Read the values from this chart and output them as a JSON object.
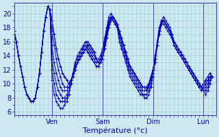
{
  "xlabel": "Température (°c)",
  "background_color": "#cce8f0",
  "grid_color": "#aaccdd",
  "line_color": "#0000bb",
  "xlim": [
    0,
    96
  ],
  "ylim": [
    5.5,
    21.5
  ],
  "yticks": [
    6,
    8,
    10,
    12,
    14,
    16,
    18,
    20
  ],
  "xtick_positions": [
    18,
    42,
    66,
    90
  ],
  "xtick_labels": [
    "Ven",
    "Sam",
    "Dim",
    "Lun"
  ],
  "series": [
    [
      17.5,
      16.0,
      14.0,
      12.5,
      11.0,
      9.5,
      8.5,
      8.0,
      7.5,
      7.5,
      8.0,
      9.5,
      11.5,
      14.5,
      17.5,
      19.5,
      21.0,
      20.5,
      19.0,
      17.0,
      15.0,
      13.5,
      12.5,
      11.5,
      11.0,
      10.5,
      10.0,
      10.5,
      11.0,
      12.0,
      13.0,
      13.5,
      14.0,
      14.5,
      15.0,
      15.5,
      15.5,
      15.0,
      14.5,
      13.5,
      13.0,
      13.0,
      13.5,
      15.0,
      16.5,
      18.0,
      19.0,
      19.5,
      19.0,
      18.5,
      17.5,
      16.5,
      15.5,
      14.5,
      13.5,
      12.5,
      12.0,
      11.5,
      11.0,
      10.5,
      10.0,
      9.5,
      9.5,
      9.5,
      10.0,
      11.0,
      12.0,
      13.5,
      15.5,
      17.5,
      18.5,
      19.0,
      18.5,
      18.0,
      17.5,
      16.5,
      15.5,
      15.0,
      14.5,
      14.0,
      13.5,
      13.0,
      12.5,
      12.0,
      11.5,
      11.0,
      10.5,
      10.0,
      9.5,
      9.5,
      10.0,
      10.5,
      11.0,
      11.5,
      11.0
    ],
    [
      17.5,
      16.0,
      14.0,
      12.5,
      11.0,
      9.5,
      8.5,
      8.0,
      7.5,
      7.5,
      8.0,
      9.5,
      11.5,
      14.5,
      17.5,
      19.5,
      21.0,
      20.5,
      19.0,
      17.0,
      15.0,
      13.5,
      12.5,
      11.5,
      11.0,
      10.5,
      10.0,
      10.5,
      11.0,
      12.0,
      13.0,
      13.5,
      14.0,
      14.5,
      15.0,
      15.5,
      15.5,
      15.0,
      14.5,
      13.5,
      13.0,
      13.0,
      13.5,
      15.0,
      16.5,
      18.0,
      19.0,
      19.5,
      19.0,
      18.5,
      17.5,
      16.5,
      15.5,
      14.5,
      13.5,
      12.5,
      12.0,
      11.5,
      11.0,
      10.5,
      10.0,
      9.5,
      9.5,
      9.5,
      10.0,
      11.0,
      12.0,
      13.5,
      15.5,
      17.5,
      18.5,
      19.0,
      18.5,
      18.0,
      17.5,
      16.5,
      15.5,
      15.0,
      14.5,
      14.0,
      13.5,
      13.0,
      12.5,
      12.0,
      11.5,
      11.0,
      10.5,
      10.0,
      9.5,
      9.5,
      10.0,
      10.5,
      11.0,
      11.5,
      11.0
    ],
    [
      17.5,
      16.0,
      14.0,
      12.5,
      11.0,
      9.5,
      8.5,
      8.0,
      7.5,
      7.5,
      8.0,
      9.5,
      11.5,
      14.5,
      17.5,
      19.5,
      21.0,
      20.5,
      17.5,
      15.5,
      13.5,
      12.0,
      11.0,
      10.0,
      9.5,
      9.5,
      10.0,
      10.5,
      11.5,
      13.0,
      14.0,
      14.5,
      15.0,
      15.5,
      16.0,
      16.0,
      15.5,
      15.0,
      14.5,
      13.5,
      13.0,
      13.5,
      14.0,
      15.5,
      17.0,
      18.5,
      19.5,
      19.5,
      19.0,
      18.5,
      17.5,
      16.5,
      15.5,
      14.5,
      13.5,
      12.5,
      12.0,
      11.5,
      11.0,
      10.5,
      10.0,
      9.5,
      9.5,
      9.5,
      10.0,
      11.0,
      12.0,
      13.5,
      15.5,
      17.0,
      18.5,
      18.5,
      18.0,
      17.5,
      17.0,
      16.5,
      15.5,
      15.0,
      14.5,
      14.0,
      13.5,
      13.0,
      12.5,
      12.0,
      11.5,
      11.0,
      10.5,
      10.0,
      9.5,
      9.0,
      9.5,
      10.0,
      10.5,
      11.0,
      11.0
    ],
    [
      17.5,
      16.0,
      14.0,
      12.5,
      11.0,
      9.5,
      8.5,
      8.0,
      7.5,
      7.5,
      8.0,
      9.5,
      11.5,
      14.5,
      17.5,
      19.5,
      21.0,
      20.5,
      15.5,
      13.0,
      11.5,
      10.5,
      9.5,
      9.0,
      9.0,
      9.0,
      9.5,
      10.5,
      11.5,
      13.0,
      13.5,
      14.0,
      14.5,
      15.5,
      16.0,
      15.5,
      15.0,
      14.5,
      14.0,
      13.5,
      13.5,
      14.0,
      15.0,
      16.5,
      18.0,
      19.5,
      20.0,
      19.5,
      19.0,
      18.5,
      17.5,
      16.5,
      15.5,
      14.5,
      13.5,
      12.5,
      12.0,
      11.5,
      11.0,
      10.5,
      10.0,
      9.5,
      9.5,
      9.0,
      10.0,
      11.0,
      12.0,
      14.0,
      15.5,
      17.5,
      18.5,
      19.0,
      18.5,
      18.0,
      17.5,
      17.0,
      16.0,
      15.5,
      15.0,
      14.5,
      14.0,
      13.5,
      13.0,
      12.5,
      12.0,
      11.5,
      11.0,
      10.5,
      10.0,
      9.5,
      9.5,
      10.0,
      10.5,
      11.0,
      11.0
    ],
    [
      17.5,
      16.0,
      14.0,
      12.5,
      11.0,
      9.5,
      8.5,
      8.0,
      7.5,
      7.5,
      8.0,
      9.5,
      11.5,
      14.5,
      17.5,
      19.5,
      21.0,
      20.5,
      13.5,
      11.5,
      10.0,
      9.0,
      8.5,
      8.0,
      8.0,
      8.5,
      9.0,
      10.0,
      11.5,
      13.0,
      13.5,
      14.0,
      14.5,
      15.0,
      15.5,
      15.0,
      14.5,
      14.0,
      13.5,
      13.0,
      13.0,
      13.5,
      14.5,
      16.0,
      17.5,
      19.0,
      19.5,
      19.5,
      19.0,
      18.0,
      17.0,
      16.0,
      15.0,
      14.0,
      13.0,
      12.0,
      11.5,
      11.0,
      10.5,
      10.0,
      9.5,
      9.0,
      9.0,
      9.0,
      9.5,
      10.5,
      12.0,
      14.0,
      16.0,
      18.0,
      19.0,
      19.5,
      19.0,
      18.5,
      18.0,
      17.0,
      16.0,
      15.5,
      15.0,
      14.5,
      14.0,
      13.5,
      13.0,
      12.5,
      12.0,
      11.5,
      11.0,
      10.5,
      10.0,
      9.5,
      9.0,
      9.5,
      10.0,
      11.0,
      11.0
    ],
    [
      17.5,
      16.0,
      14.0,
      12.5,
      11.0,
      9.5,
      8.5,
      8.0,
      7.5,
      7.5,
      8.0,
      9.5,
      11.5,
      14.5,
      17.5,
      19.5,
      21.0,
      20.5,
      12.0,
      10.0,
      8.5,
      8.0,
      7.5,
      7.5,
      7.5,
      8.0,
      8.5,
      10.0,
      11.5,
      12.5,
      13.0,
      13.5,
      14.0,
      14.5,
      15.0,
      14.5,
      14.0,
      13.5,
      13.0,
      12.5,
      12.5,
      13.0,
      14.5,
      16.0,
      17.5,
      19.0,
      19.5,
      19.0,
      18.5,
      18.0,
      16.5,
      15.5,
      14.5,
      13.5,
      12.5,
      11.5,
      11.0,
      10.5,
      10.0,
      9.5,
      9.0,
      8.5,
      8.5,
      8.5,
      9.0,
      10.0,
      11.5,
      13.5,
      16.0,
      18.0,
      19.0,
      19.0,
      18.5,
      18.0,
      17.5,
      17.0,
      16.0,
      15.5,
      15.0,
      14.5,
      14.0,
      13.5,
      13.0,
      12.5,
      12.0,
      11.5,
      11.0,
      10.5,
      10.0,
      9.5,
      9.0,
      9.0,
      9.5,
      10.5,
      11.0
    ],
    [
      17.5,
      16.0,
      14.0,
      12.5,
      11.0,
      9.5,
      8.5,
      8.0,
      7.5,
      7.5,
      8.0,
      9.5,
      11.5,
      14.5,
      17.5,
      19.5,
      21.0,
      20.5,
      10.5,
      8.5,
      7.5,
      7.0,
      6.5,
      6.5,
      7.0,
      7.5,
      8.5,
      10.0,
      11.5,
      12.5,
      13.0,
      13.5,
      14.0,
      14.5,
      15.0,
      14.5,
      14.0,
      13.5,
      13.0,
      12.5,
      12.5,
      13.0,
      14.0,
      15.5,
      17.0,
      18.5,
      19.5,
      19.0,
      18.5,
      18.0,
      16.0,
      15.0,
      14.0,
      13.0,
      12.0,
      11.0,
      10.5,
      10.0,
      9.5,
      9.0,
      8.5,
      8.5,
      8.0,
      8.0,
      8.5,
      9.5,
      11.0,
      13.0,
      15.5,
      17.5,
      19.0,
      19.0,
      18.5,
      18.0,
      17.5,
      16.5,
      16.0,
      15.5,
      15.0,
      14.5,
      14.0,
      13.5,
      13.0,
      12.5,
      12.0,
      11.5,
      11.0,
      10.5,
      10.0,
      9.5,
      9.0,
      8.5,
      9.0,
      10.0,
      11.0
    ]
  ]
}
